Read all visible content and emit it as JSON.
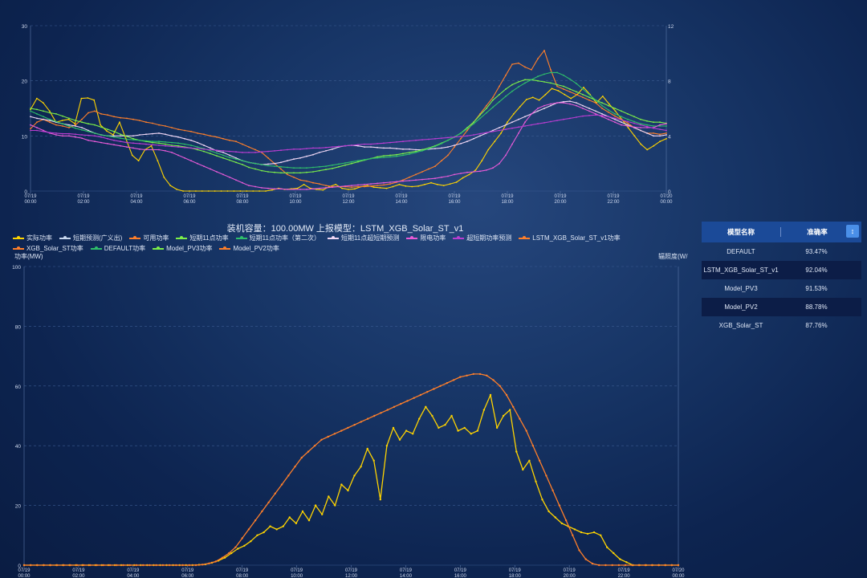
{
  "chart_data": [
    {
      "type": "line",
      "x_labels": [
        "07/19\n00:00",
        "07/19\n02:00",
        "07/19\n04:00",
        "07/19\n06:00",
        "07/19\n08:00",
        "07/19\n10:00",
        "07/19\n12:00",
        "07/19\n14:00",
        "07/19\n16:00",
        "07/19\n18:00",
        "07/19\n20:00",
        "07/19\n22:00",
        "07/20\n00:00"
      ],
      "y_left_ticks": [
        0,
        10,
        20,
        30
      ],
      "y_right_ticks": [
        0,
        4,
        8,
        12
      ],
      "ylim": [
        0,
        30
      ],
      "series": [
        {
          "color": "#ffd400",
          "values": [
            14.8,
            16.8,
            16,
            14.5,
            12.5,
            12.8,
            13,
            12.2,
            16.8,
            16.9,
            16.5,
            12,
            10.9,
            10.2,
            12.5,
            9.5,
            6.5,
            5.5,
            7.5,
            8.2,
            5.5,
            2.5,
            1,
            0.3,
            0,
            0,
            0,
            0,
            0,
            0,
            0,
            0,
            0,
            0,
            0,
            0,
            0,
            0,
            0.2,
            0.5,
            0.3,
            0.4,
            0.5,
            1.2,
            0.5,
            0.3,
            0.2,
            0.8,
            1.2,
            0.5,
            0.3,
            0.4,
            0.8,
            1,
            0.7,
            0.6,
            0.5,
            0.8,
            1.2,
            0.9,
            0.8,
            0.9,
            1.2,
            1.5,
            1.2,
            1,
            1.3,
            1.6,
            2.4,
            3,
            3.8,
            5.5,
            7.5,
            9,
            10.5,
            12.5,
            14,
            15.3,
            16.6,
            17,
            16.5,
            17.5,
            18.6,
            18.2,
            17.5,
            16.8,
            17.5,
            18.8,
            17.5,
            16,
            17.2,
            15.8,
            14.5,
            13,
            11.5,
            10,
            8.5,
            7.5,
            8.2,
            9,
            9.5
          ]
        },
        {
          "color": "#ff7f2a",
          "values": [
            11.3,
            12.5,
            13,
            12.5,
            12,
            11.8,
            11.5,
            12,
            13,
            14.2,
            14.5,
            14,
            13.8,
            13.5,
            13.3,
            13.2,
            13,
            12.8,
            12.5,
            12.3,
            12,
            11.8,
            11.5,
            11.2,
            11,
            10.8,
            10.5,
            10.3,
            10,
            9.8,
            9.5,
            9.2,
            9,
            8.5,
            8,
            7.5,
            7,
            6,
            5,
            4,
            3,
            2.5,
            2,
            1.8,
            1.5,
            1.3,
            1,
            0.8,
            0.8,
            0.8,
            0.7,
            0.8,
            0.8,
            0.9,
            1,
            1.1,
            1.3,
            1.6,
            2,
            2.5,
            3,
            3.5,
            4,
            4.5,
            5.5,
            6.5,
            8,
            9.5,
            11,
            12.5,
            14,
            15.5,
            17,
            19,
            21,
            23,
            23.2,
            22.5,
            22,
            24,
            25.5,
            22,
            19,
            18.5,
            18,
            17.5,
            17,
            16.5,
            16,
            15,
            14.3,
            13.6,
            13,
            12.3,
            11.5,
            11,
            10.5,
            10.5,
            10.3,
            10.5
          ]
        },
        {
          "color": "#f0d7f5",
          "values": [
            13.5,
            13.2,
            13,
            12.8,
            12.5,
            12.2,
            12,
            11.8,
            11.5,
            11,
            10.5,
            10.2,
            10,
            10,
            10,
            10,
            10,
            10.2,
            10.3,
            10.4,
            10.5,
            10.3,
            10,
            9.8,
            9.5,
            9.2,
            8.8,
            8.3,
            7.8,
            7.3,
            7,
            6.5,
            6,
            5.5,
            5.2,
            5,
            4.8,
            4.9,
            5,
            5.2,
            5.5,
            5.8,
            6,
            6.3,
            6.6,
            7,
            7.3,
            7.6,
            8,
            8.2,
            8.3,
            8.2,
            8,
            8,
            7.9,
            7.8,
            7.8,
            7.7,
            7.6,
            7.6,
            7.5,
            7.5,
            7.6,
            7.7,
            7.8,
            8,
            8.3,
            8.6,
            9,
            9.5,
            10,
            10.5,
            11,
            11.5,
            12,
            12.5,
            13,
            13.5,
            14,
            14.5,
            15,
            15.5,
            16,
            16.2,
            16.3,
            16,
            15.5,
            15,
            14.5,
            14,
            13.5,
            13,
            12.5,
            12,
            11.5,
            11,
            10.5,
            10,
            10,
            10.2
          ]
        },
        {
          "color": "#7cf048",
          "values": [
            15,
            14.8,
            14.5,
            14.2,
            14,
            13.6,
            13.2,
            12.8,
            12.5,
            12.2,
            12,
            11.6,
            11.2,
            10.8,
            10.3,
            9.9,
            9.5,
            9.2,
            9,
            8.8,
            8.7,
            8.5,
            8.3,
            8.2,
            8,
            7.8,
            7.5,
            7.2,
            6.8,
            6.4,
            6,
            5.6,
            5.2,
            4.8,
            4.3,
            4,
            3.7,
            3.5,
            3.4,
            3.3,
            3.3,
            3.3,
            3.3,
            3.4,
            3.5,
            3.7,
            3.9,
            4.1,
            4.4,
            4.7,
            5,
            5.3,
            5.6,
            5.9,
            6.2,
            6.4,
            6.5,
            6.6,
            6.8,
            7,
            7.2,
            7.5,
            7.8,
            8.2,
            8.7,
            9.2,
            9.8,
            10.5,
            11.5,
            12.5,
            13.8,
            15,
            16.5,
            17.5,
            18.5,
            19.3,
            19.8,
            20.2,
            20.2,
            20,
            19.8,
            19.6,
            19.3,
            19,
            18.5,
            18,
            17.5,
            17,
            16.5,
            16,
            15.5,
            15,
            14.5,
            14,
            13.5,
            13,
            12.7,
            12.5,
            12.5,
            12.3
          ]
        },
        {
          "color": "#2fbf6a",
          "values": [
            14.5,
            14,
            13.5,
            13,
            12.6,
            12.2,
            11.8,
            11.4,
            11.1,
            10.8,
            10.5,
            10.2,
            10,
            9.8,
            9.6,
            9.4,
            9.3,
            9.2,
            9.1,
            9,
            9,
            8.9,
            8.8,
            8.7,
            8.5,
            8.3,
            8,
            7.7,
            7.3,
            6.9,
            6.5,
            6.1,
            5.8,
            5.5,
            5.2,
            5,
            4.8,
            4.6,
            4.5,
            4.4,
            4.3,
            4.2,
            4.2,
            4.2,
            4.3,
            4.4,
            4.5,
            4.7,
            4.9,
            5.1,
            5.3,
            5.5,
            5.7,
            5.9,
            6,
            6.1,
            6.2,
            6.3,
            6.5,
            6.7,
            7,
            7.3,
            7.7,
            8.1,
            8.6,
            9.2,
            9.8,
            10.5,
            11.3,
            12.2,
            13.2,
            14.2,
            15.2,
            16.2,
            17.2,
            18.1,
            18.9,
            19.6,
            20.2,
            20.8,
            21.2,
            21.5,
            21.5,
            21,
            20.3,
            19.5,
            18.5,
            17.5,
            16.5,
            15.5,
            14.7,
            14,
            13.5,
            13,
            12.6,
            12.2,
            12,
            11.8,
            11.8,
            11.8
          ]
        },
        {
          "color": "#e85ad8",
          "values": [
            12,
            11.5,
            11,
            10.5,
            10.2,
            10,
            10,
            9.8,
            9.6,
            9.2,
            9,
            8.8,
            8.6,
            8.4,
            8.2,
            8,
            7.8,
            7.6,
            7.5,
            7.5,
            7.5,
            7.3,
            7,
            6.5,
            6,
            5.5,
            5,
            4.5,
            4,
            3.5,
            3,
            2.5,
            2,
            1.5,
            1,
            0.8,
            0.6,
            0.5,
            0.4,
            0.4,
            0.3,
            0.3,
            0.3,
            0.3,
            0.4,
            0.5,
            0.6,
            0.7,
            0.8,
            0.9,
            1,
            1.1,
            1.2,
            1.3,
            1.4,
            1.5,
            1.6,
            1.7,
            1.8,
            1.9,
            2,
            2.1,
            2.2,
            2.3,
            2.5,
            2.7,
            3,
            3.2,
            3.4,
            3.5,
            3.6,
            3.8,
            4.2,
            5,
            6.5,
            8.5,
            10.5,
            12.5,
            14,
            15,
            15.5,
            15.8,
            16,
            16,
            15.8,
            15.5,
            15,
            14.5,
            14,
            13.5,
            13,
            12.5,
            12,
            11.8,
            11.6,
            11.5,
            11.5,
            11.5,
            12,
            12.2
          ]
        },
        {
          "color": "#b93dd1",
          "values": [
            11,
            11,
            10.8,
            10.6,
            10.5,
            10.4,
            10.4,
            10.3,
            10.2,
            10.1,
            10,
            9.8,
            9.5,
            9.2,
            9,
            8.8,
            8.7,
            8.6,
            8.5,
            8.4,
            8.3,
            8.2,
            8.1,
            8,
            7.9,
            7.8,
            7.7,
            7.6,
            7.5,
            7.4,
            7.3,
            7.2,
            7.1,
            7,
            7,
            7,
            7.1,
            7.2,
            7.3,
            7.4,
            7.5,
            7.6,
            7.6,
            7.7,
            7.8,
            7.8,
            7.9,
            8,
            8.1,
            8.2,
            8.3,
            8.4,
            8.5,
            8.5,
            8.6,
            8.7,
            8.8,
            8.9,
            9,
            9.1,
            9.2,
            9.3,
            9.4,
            9.5,
            9.6,
            9.7,
            9.8,
            9.9,
            10,
            10.2,
            10.4,
            10.6,
            10.8,
            11,
            11.2,
            11.4,
            11.6,
            11.8,
            12,
            12.2,
            12.4,
            12.6,
            12.8,
            13,
            13.2,
            13.4,
            13.6,
            13.7,
            13.8,
            13.7,
            13.5,
            13.2,
            12.9,
            12.6,
            12.3,
            12,
            11.7,
            11.4,
            11.2,
            11
          ]
        }
      ]
    },
    {
      "type": "line",
      "title": "装机容量：100.00MW  上报模型：LSTM_XGB_Solar_ST_v1",
      "ylabel_left": "功率(MW)",
      "ylabel_right": "辐照度(W/",
      "x_labels": [
        "07/19\n00:00",
        "07/19\n02:00",
        "07/19\n04:00",
        "07/19\n06:00",
        "07/19\n08:00",
        "07/19\n10:00",
        "07/19\n12:00",
        "07/19\n14:00",
        "07/19\n16:00",
        "07/19\n18:00",
        "07/19\n20:00",
        "07/19\n22:00",
        "07/20\n00:00"
      ],
      "y_left_ticks": [
        0,
        20,
        40,
        60,
        80,
        100
      ],
      "ylim": [
        0,
        100
      ],
      "legend": [
        {
          "name": "实际功率",
          "color": "#ffd400"
        },
        {
          "name": "短期预测(广义出)",
          "color": "#c8d6ee"
        },
        {
          "name": "可用功率",
          "color": "#ff7f2a"
        },
        {
          "name": "短期11点功率",
          "color": "#7cf048"
        },
        {
          "name": "短期11点功率（第二次）",
          "color": "#2fbf6a"
        },
        {
          "name": "短期11点超短期预测",
          "color": "#f0d7f5"
        },
        {
          "name": "限电功率",
          "color": "#e85ad8"
        },
        {
          "name": "超短期功率预测",
          "color": "#b93dd1"
        },
        {
          "name": "LSTM_XGB_Solar_ST_v1功率",
          "color": "#ff7f2a"
        },
        {
          "name": "XGB_Solar_ST功率",
          "color": "#ff7f2a"
        },
        {
          "name": "DEFAULT功率",
          "color": "#2fbf6a"
        },
        {
          "name": "Model_PV3功率",
          "color": "#7cf048"
        },
        {
          "name": "Model_PV2功率",
          "color": "#ff7f2a"
        }
      ],
      "series": [
        {
          "name": "实际功率",
          "color": "#ffd400",
          "values": [
            0,
            0,
            0,
            0,
            0,
            0,
            0,
            0,
            0,
            0,
            0,
            0,
            0,
            0,
            0,
            0,
            0,
            0,
            0,
            0,
            0,
            0,
            0,
            0,
            0,
            0,
            0,
            0.1,
            0.3,
            0.8,
            1.5,
            2.5,
            4,
            5.5,
            6.5,
            8,
            10,
            11,
            13,
            12,
            13,
            16,
            14,
            18,
            15,
            20,
            17,
            23,
            20,
            27,
            25,
            30,
            33,
            39,
            35,
            22,
            40,
            46,
            42,
            45,
            44,
            49,
            53,
            50,
            46,
            47,
            50,
            45,
            46,
            44,
            45,
            52,
            57,
            46,
            50,
            52,
            38,
            32,
            35,
            28,
            22,
            18,
            16,
            14,
            13,
            12,
            11,
            10.5,
            11,
            10,
            6,
            4,
            2,
            1,
            0,
            0,
            0,
            0,
            0,
            0,
            0,
            0
          ]
        },
        {
          "name": "LSTM_XGB_Solar_ST_v1功率",
          "color": "#ff7f2a",
          "values": [
            0,
            0,
            0,
            0,
            0,
            0,
            0,
            0,
            0,
            0,
            0,
            0,
            0,
            0,
            0,
            0,
            0,
            0,
            0,
            0,
            0,
            0,
            0,
            0,
            0,
            0,
            0,
            0.2,
            0.6,
            1.2,
            2.5,
            4,
            6,
            9,
            12,
            15,
            18,
            21,
            24,
            27,
            30,
            33,
            36,
            38,
            40,
            42,
            43,
            44,
            45,
            46,
            47,
            48,
            49,
            50,
            51,
            52,
            53,
            54,
            55,
            56,
            57,
            58,
            59,
            60,
            61,
            62,
            63,
            63.5,
            64,
            64,
            63.5,
            62,
            60,
            57,
            53,
            49,
            45,
            40,
            35,
            30,
            25,
            20,
            15,
            10,
            5,
            2,
            0.5,
            0,
            0,
            0,
            0,
            0,
            0,
            0,
            0,
            0,
            0,
            0,
            0,
            0
          ]
        }
      ]
    }
  ],
  "side_table": {
    "col1": "模型名称",
    "col2": "准确率",
    "sort_icon": "↕",
    "rows": [
      {
        "name": "DEFAULT",
        "acc": "93.47%"
      },
      {
        "name": "LSTM_XGB_Solar_ST_v1",
        "acc": "92.04%"
      },
      {
        "name": "Model_PV3",
        "acc": "91.53%"
      },
      {
        "name": "Model_PV2",
        "acc": "88.78%"
      },
      {
        "name": "XGB_Solar_ST",
        "acc": "87.76%"
      }
    ]
  }
}
